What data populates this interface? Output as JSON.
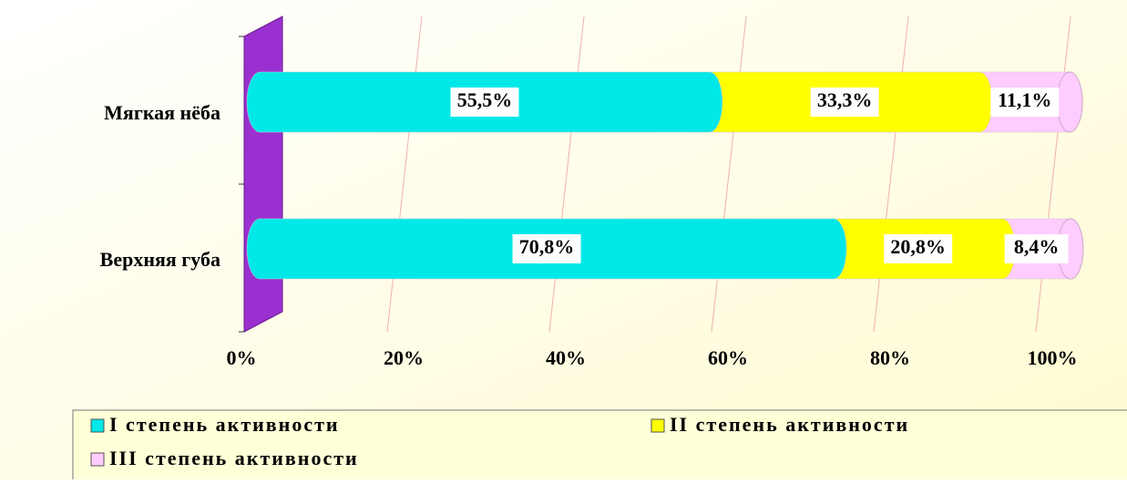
{
  "chart_data": {
    "type": "stacked-bar-horizontal",
    "categories": [
      "Мягкая нёба",
      "Верхняя губа"
    ],
    "series": [
      {
        "name": "I степень активности",
        "color": "#00e8e8",
        "values": [
          55.5,
          70.8
        ],
        "value_labels": [
          "55,5%",
          "70,8%"
        ]
      },
      {
        "name": "II степень активности",
        "color": "#ffff00",
        "values": [
          33.3,
          20.8
        ],
        "value_labels": [
          "33,3%",
          "20,8%"
        ]
      },
      {
        "name": "III степень активности",
        "color": "#ffccff",
        "values": [
          11.1,
          8.4
        ],
        "value_labels": [
          "11,1%",
          "8,4%"
        ]
      }
    ],
    "xlim": [
      0,
      100
    ],
    "xticks": [
      {
        "value": 0,
        "label": "0%"
      },
      {
        "value": 20,
        "label": "20%"
      },
      {
        "value": 40,
        "label": "40%"
      },
      {
        "value": 60,
        "label": "60%"
      },
      {
        "value": 80,
        "label": "80%"
      },
      {
        "value": 100,
        "label": "100%"
      }
    ],
    "grid": true,
    "legend": "bottom"
  }
}
